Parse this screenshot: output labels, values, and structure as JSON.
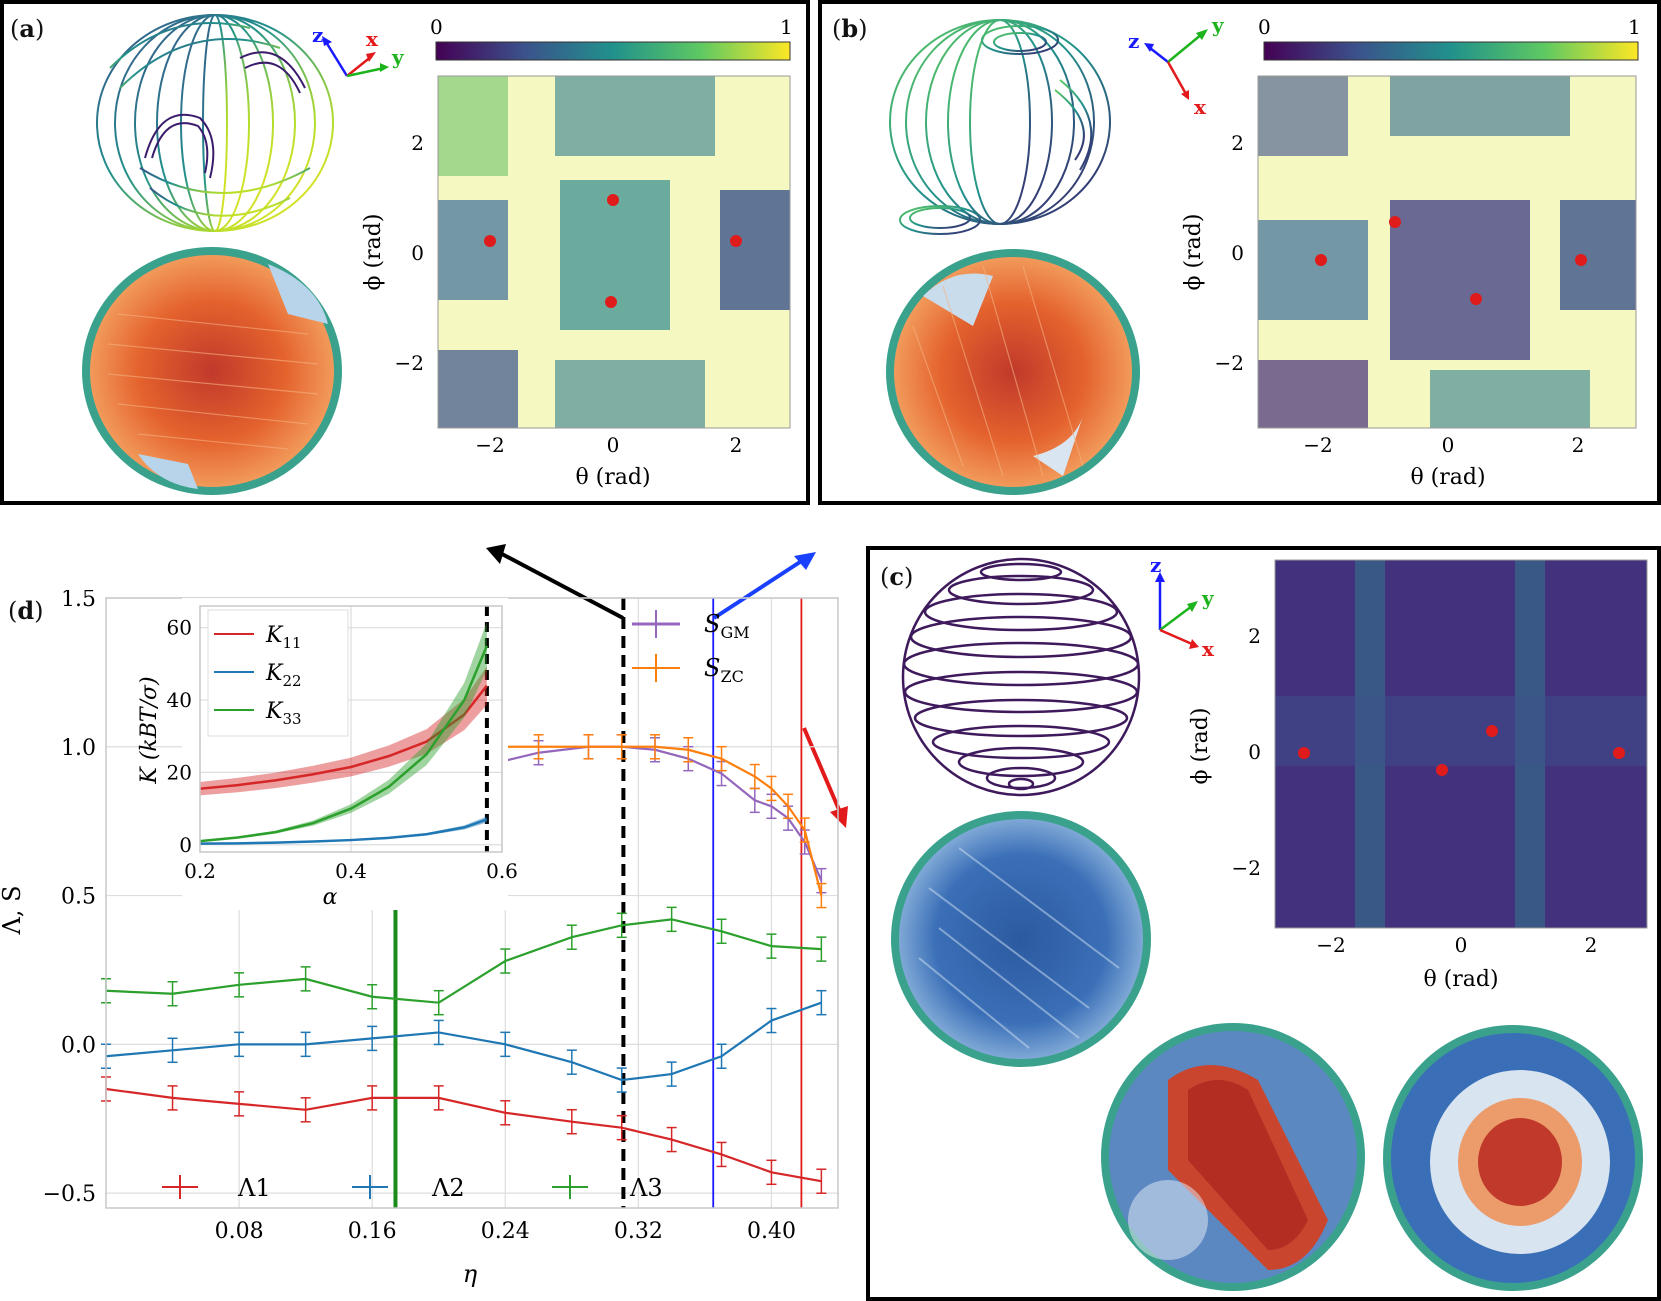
{
  "panels": {
    "a": {
      "label_open": "(",
      "label_letter": "a",
      "label_close": ")",
      "axes": {
        "z": "z",
        "x": "x",
        "y": "y"
      },
      "colorbar": {
        "min": "0",
        "max": "1"
      },
      "ylabel": "ϕ (rad)",
      "xlabel": "θ (rad)",
      "xticks": [
        "−2",
        "0",
        "2"
      ],
      "yticks": [
        "2",
        "0",
        "−2"
      ]
    },
    "b": {
      "label_open": "(",
      "label_letter": "b",
      "label_close": ")",
      "axes": {
        "z": "z",
        "x": "x",
        "y": "y"
      },
      "colorbar": {
        "min": "0",
        "max": "1"
      },
      "ylabel": "ϕ (rad)",
      "xlabel": "θ (rad)",
      "xticks": [
        "−2",
        "0",
        "2"
      ],
      "yticks": [
        "2",
        "0",
        "−2"
      ]
    },
    "c": {
      "label_open": "(",
      "label_letter": "c",
      "label_close": ")",
      "axes": {
        "z": "z",
        "x": "x",
        "y": "y"
      },
      "ylabel": "ϕ (rad)",
      "xlabel": "θ (rad)",
      "xticks": [
        "−2",
        "0",
        "2"
      ],
      "yticks": [
        "2",
        "0",
        "−2"
      ]
    },
    "d": {
      "label_open": "(",
      "label_letter": "d",
      "label_close": ")"
    }
  },
  "colors": {
    "red": "#d62728",
    "blue": "#1f77b4",
    "green": "#2ca02c",
    "purple": "#9467bd",
    "orange": "#ff7f0e"
  },
  "chart_data": [
    {
      "type": "line",
      "xlabel": "η",
      "ylabel": "Λ, S",
      "xlim": [
        0.0,
        0.44
      ],
      "ylim": [
        -0.55,
        1.5
      ],
      "xticks": [
        "0.08",
        "0.16",
        "0.24",
        "0.32",
        "0.40"
      ],
      "yticks": [
        "1.5",
        "1.0",
        "0.5",
        "0.0",
        "−0.5"
      ],
      "grid": true,
      "vlines": [
        {
          "x": 0.174,
          "color": "green",
          "style": "solid"
        },
        {
          "x": 0.311,
          "color": "black",
          "style": "dashed"
        },
        {
          "x": 0.365,
          "color": "blue",
          "style": "solid"
        },
        {
          "x": 0.418,
          "color": "red",
          "style": "solid"
        }
      ],
      "legend_placement": "bottom",
      "series": [
        {
          "name": "Λ1",
          "color": "red",
          "x": [
            0.0,
            0.04,
            0.08,
            0.12,
            0.16,
            0.2,
            0.24,
            0.28,
            0.31,
            0.34,
            0.37,
            0.4,
            0.43
          ],
          "y": [
            -0.15,
            -0.18,
            -0.2,
            -0.22,
            -0.18,
            -0.18,
            -0.23,
            -0.26,
            -0.28,
            -0.32,
            -0.37,
            -0.43,
            -0.46
          ]
        },
        {
          "name": "Λ2",
          "color": "blue",
          "x": [
            0.0,
            0.04,
            0.08,
            0.12,
            0.16,
            0.2,
            0.24,
            0.28,
            0.31,
            0.34,
            0.37,
            0.4,
            0.43
          ],
          "y": [
            -0.04,
            -0.02,
            0.0,
            0.0,
            0.02,
            0.04,
            0.0,
            -0.06,
            -0.12,
            -0.1,
            -0.04,
            0.08,
            0.14
          ]
        },
        {
          "name": "Λ3",
          "color": "green",
          "x": [
            0.0,
            0.04,
            0.08,
            0.12,
            0.16,
            0.2,
            0.24,
            0.28,
            0.31,
            0.34,
            0.37,
            0.4,
            0.43
          ],
          "y": [
            0.18,
            0.17,
            0.2,
            0.22,
            0.16,
            0.14,
            0.28,
            0.36,
            0.4,
            0.42,
            0.38,
            0.33,
            0.32
          ]
        },
        {
          "name": "SGM",
          "color": "purple",
          "x": [
            0.23,
            0.26,
            0.29,
            0.31,
            0.33,
            0.35,
            0.37,
            0.39,
            0.4,
            0.41,
            0.42,
            0.43
          ],
          "y": [
            0.94,
            0.98,
            1.0,
            1.0,
            0.99,
            0.96,
            0.91,
            0.82,
            0.8,
            0.76,
            0.68,
            0.55
          ]
        },
        {
          "name": "SZC",
          "color": "orange",
          "x": [
            0.23,
            0.26,
            0.29,
            0.31,
            0.33,
            0.35,
            0.37,
            0.39,
            0.4,
            0.41,
            0.42,
            0.43
          ],
          "y": [
            1.0,
            1.0,
            1.0,
            1.0,
            1.0,
            0.99,
            0.96,
            0.9,
            0.86,
            0.8,
            0.72,
            0.5
          ]
        }
      ],
      "legend": {
        "lambda1": "Λ1",
        "lambda2": "Λ2",
        "lambda3": "Λ3",
        "sgm_main": "S",
        "sgm_sub": "GM",
        "szc_main": "S",
        "szc_sub": "ZC"
      }
    },
    {
      "type": "line",
      "xlabel": "α",
      "ylabel": "K (kBT/σ)",
      "xlim": [
        0.2,
        0.6
      ],
      "ylim": [
        -2,
        66
      ],
      "xticks": [
        "0.2",
        "0.4",
        "0.6"
      ],
      "yticks": [
        "0",
        "20",
        "40",
        "60"
      ],
      "grid": true,
      "vline": {
        "x": 0.58,
        "style": "dashed"
      },
      "legend_placement": "top-left",
      "series": [
        {
          "name": "K11",
          "color": "red",
          "x": [
            0.2,
            0.25,
            0.3,
            0.35,
            0.4,
            0.45,
            0.5,
            0.55,
            0.58
          ],
          "y": [
            15.5,
            16.5,
            17.8,
            19.5,
            21.5,
            24.5,
            28.5,
            36,
            44
          ]
        },
        {
          "name": "K22",
          "color": "blue",
          "x": [
            0.2,
            0.25,
            0.3,
            0.35,
            0.4,
            0.45,
            0.5,
            0.55,
            0.58
          ],
          "y": [
            0.3,
            0.4,
            0.6,
            0.9,
            1.3,
            1.9,
            2.9,
            4.8,
            7
          ]
        },
        {
          "name": "K33",
          "color": "green",
          "x": [
            0.2,
            0.25,
            0.3,
            0.35,
            0.4,
            0.45,
            0.5,
            0.55,
            0.58
          ],
          "y": [
            1.0,
            2.0,
            3.5,
            6,
            10,
            16,
            25,
            40,
            55
          ]
        }
      ],
      "legend": {
        "k11_sub": "11",
        "k22_sub": "22",
        "k33_sub": "33",
        "k_main": "K"
      }
    }
  ]
}
